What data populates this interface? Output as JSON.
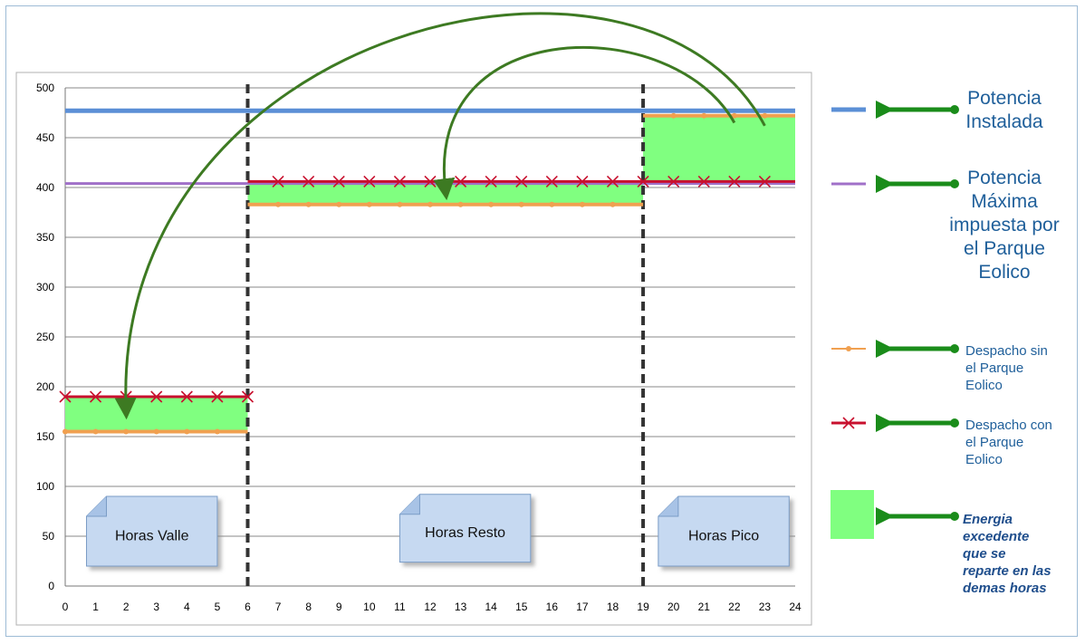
{
  "chart_data": {
    "type": "line",
    "title": "",
    "xlabel": "",
    "ylabel": "",
    "xlim": [
      0,
      24
    ],
    "ylim": [
      0,
      500
    ],
    "x_ticks": [
      0,
      1,
      2,
      3,
      4,
      5,
      6,
      7,
      8,
      9,
      10,
      11,
      12,
      13,
      14,
      15,
      16,
      17,
      18,
      19,
      20,
      21,
      22,
      23,
      24
    ],
    "y_ticks": [
      0,
      50,
      100,
      150,
      200,
      250,
      300,
      350,
      400,
      450,
      500
    ],
    "grid": "horizontal",
    "legend_position": "right",
    "series": [
      {
        "name": "Potencia Instalada",
        "color": "#5b8fd6",
        "points": [
          [
            0,
            477
          ],
          [
            24,
            477
          ]
        ]
      },
      {
        "name": "Potencia Máxima impuesta por el Parque Eolico",
        "color": "#a070c8",
        "points": [
          [
            0,
            404
          ],
          [
            24,
            404
          ]
        ]
      },
      {
        "name": "Despacho sin el Parque Eolico",
        "color": "#f0a050",
        "segments": [
          [
            [
              0,
              155
            ],
            [
              6,
              155
            ]
          ],
          [
            [
              6,
              383
            ],
            [
              19,
              383
            ]
          ],
          [
            [
              19,
              472
            ],
            [
              24,
              472
            ]
          ]
        ],
        "markers": [
          [
            0,
            155
          ],
          [
            1,
            155
          ],
          [
            2,
            155
          ],
          [
            3,
            155
          ],
          [
            4,
            155
          ],
          [
            5,
            155
          ],
          [
            7,
            383
          ],
          [
            8,
            383
          ],
          [
            9,
            383
          ],
          [
            10,
            383
          ],
          [
            11,
            383
          ],
          [
            12,
            383
          ],
          [
            13,
            383
          ],
          [
            14,
            383
          ],
          [
            15,
            383
          ],
          [
            16,
            383
          ],
          [
            17,
            383
          ],
          [
            18,
            383
          ],
          [
            20,
            472
          ],
          [
            21,
            472
          ],
          [
            22,
            472
          ],
          [
            23,
            472
          ]
        ]
      },
      {
        "name": "Despacho con el Parque Eolico",
        "color": "#c8102e",
        "segments": [
          [
            [
              0,
              190
            ],
            [
              6,
              190
            ]
          ],
          [
            [
              6,
              406
            ],
            [
              19,
              406
            ]
          ],
          [
            [
              19,
              406
            ],
            [
              24,
              406
            ]
          ]
        ],
        "markers": [
          [
            0,
            190
          ],
          [
            1,
            190
          ],
          [
            2,
            190
          ],
          [
            3,
            190
          ],
          [
            4,
            190
          ],
          [
            5,
            190
          ],
          [
            6,
            190
          ],
          [
            7,
            406
          ],
          [
            8,
            406
          ],
          [
            9,
            406
          ],
          [
            10,
            406
          ],
          [
            11,
            406
          ],
          [
            12,
            406
          ],
          [
            13,
            406
          ],
          [
            14,
            406
          ],
          [
            15,
            406
          ],
          [
            16,
            406
          ],
          [
            17,
            406
          ],
          [
            18,
            406
          ],
          [
            19,
            406
          ],
          [
            20,
            406
          ],
          [
            21,
            406
          ],
          [
            22,
            406
          ],
          [
            23,
            406
          ]
        ]
      }
    ],
    "areas": [
      {
        "name": "Energia excedente que se reparte en las demas horas",
        "color": "#80ff80",
        "regions": [
          {
            "x": [
              0,
              6
            ],
            "y": [
              155,
              190
            ]
          },
          {
            "x": [
              6,
              19
            ],
            "y": [
              383,
              406
            ]
          },
          {
            "x": [
              19,
              24
            ],
            "y": [
              406,
              472
            ]
          }
        ]
      }
    ],
    "dividers": [
      6,
      19
    ],
    "notes": [
      {
        "label": "Horas Valle",
        "x_from": 0.7,
        "x_to": 5.0,
        "y_top": 90,
        "y_bottom": 20
      },
      {
        "label": "Horas Resto",
        "x_from": 11.0,
        "x_to": 15.3,
        "y_top": 92,
        "y_bottom": 24
      },
      {
        "label": "Horas Pico",
        "x_from": 19.5,
        "x_to": 23.8,
        "y_top": 90,
        "y_bottom": 20
      }
    ],
    "arcs": [
      {
        "from": [
          23,
          462
        ],
        "to": [
          2,
          178
        ]
      },
      {
        "from": [
          22,
          465
        ],
        "to": [
          12.5,
          398
        ]
      }
    ]
  },
  "legend": {
    "installed": [
      "Potencia",
      "Instalada"
    ],
    "max_power": [
      "Potencia",
      "Máxima",
      "impuesta por",
      "el Parque",
      "Eolico"
    ],
    "dispatch_without": [
      "Despacho sin",
      "el Parque",
      "Eolico"
    ],
    "dispatch_with": [
      "Despacho con",
      "el Parque",
      "Eolico"
    ],
    "energy": [
      "Energia",
      "excedente",
      "que se",
      "reparte en las",
      "demas horas"
    ],
    "arrow_color": "#1a8c1a"
  }
}
